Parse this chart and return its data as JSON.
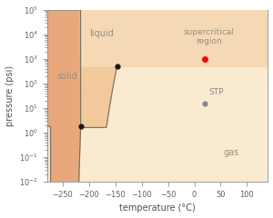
{
  "title": "",
  "xlabel": "temperature (°C)",
  "ylabel": "pressure (psi)",
  "xlim": [
    -280,
    140
  ],
  "ylim_log_min": -2,
  "ylim_log_max": 5,
  "bg_color": "#ffffff",
  "solid_color": "#e8a87c",
  "liquid_color": "#f2c99a",
  "gas_color": "#faebd0",
  "supercritical_color": "#f5d9b5",
  "curve_color": "#707060",
  "triple_T": -216,
  "triple_P": 1.8,
  "critical_T": -147,
  "critical_P": 492,
  "stp_T": 20,
  "stp_P": 14.7,
  "red_T": 20,
  "red_P": 1000,
  "label_color": "#909080",
  "text_solid": "solid",
  "text_liquid": "liquid",
  "text_gas": "gas",
  "text_sc": "supercritical\nregion",
  "text_stp": "STP"
}
